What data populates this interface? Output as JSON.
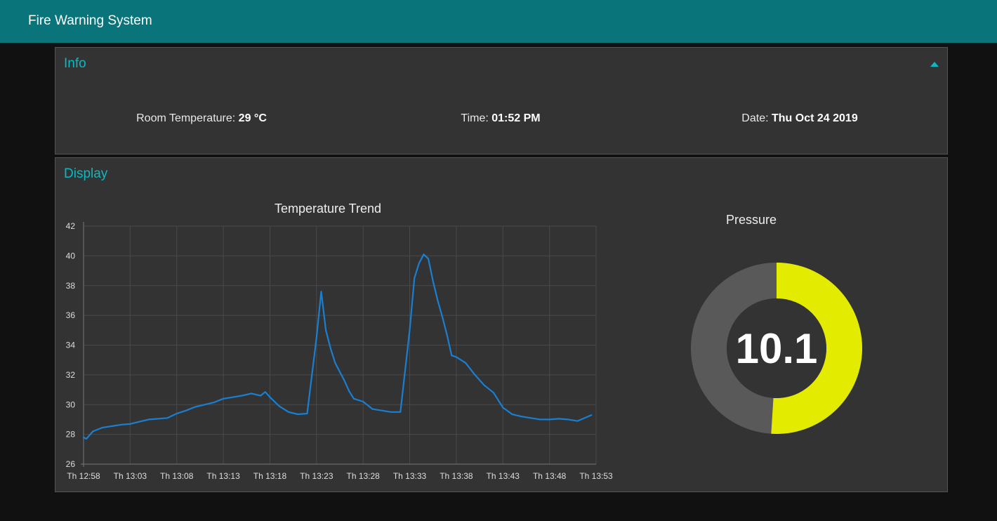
{
  "app": {
    "title": "Fire Warning System"
  },
  "info": {
    "title": "Info",
    "room_temperature": {
      "label": "Room Temperature:",
      "value": "29 °C"
    },
    "time": {
      "label": "Time:",
      "value": "01:52 PM"
    },
    "date": {
      "label": "Date:",
      "value": "Thu Oct 24 2019"
    }
  },
  "display": {
    "title": "Display",
    "gauge": {
      "title": "Pressure",
      "value": 10.1,
      "display": "10.1",
      "fraction": 0.51,
      "color": "#e3ec00",
      "track_color": "#595959"
    }
  },
  "colors": {
    "header": "#097479",
    "accent": "#0eb8c0",
    "line": "#1a7fd0"
  },
  "chart_data": {
    "type": "line",
    "title": "Temperature Trend",
    "xlabel": "",
    "ylabel": "",
    "ylim": [
      26,
      42
    ],
    "yticks": [
      26,
      28,
      30,
      32,
      34,
      36,
      38,
      40,
      42
    ],
    "x_tick_labels": [
      "Th 12:58",
      "Th 13:03",
      "Th 13:08",
      "Th 13:13",
      "Th 13:18",
      "Th 13:23",
      "Th 13:28",
      "Th 13:33",
      "Th 13:38",
      "Th 13:43",
      "Th 13:48",
      "Th 13:53"
    ],
    "x_range_minutes": [
      0,
      55
    ],
    "grid": true,
    "series": [
      {
        "x": [
          0,
          0.3,
          1,
          2,
          3,
          4,
          5,
          6,
          7,
          8,
          9,
          10,
          11,
          12,
          13,
          14,
          15,
          16,
          17,
          18,
          19,
          19.5,
          20,
          21,
          22,
          23,
          24,
          25,
          25.5,
          26,
          26.5,
          27,
          27.5,
          28,
          28.5,
          29,
          30,
          31,
          32,
          33,
          34,
          35,
          35.5,
          36,
          36.5,
          37,
          37.5,
          38,
          38.5,
          39,
          39.5,
          40,
          41,
          42,
          43,
          44,
          45,
          46,
          47,
          48,
          49,
          50,
          51,
          52,
          53,
          54.5
        ],
        "y": [
          27.8,
          27.7,
          28.2,
          28.45,
          28.55,
          28.65,
          28.7,
          28.85,
          29.0,
          29.05,
          29.1,
          29.4,
          29.6,
          29.85,
          30.0,
          30.15,
          30.4,
          30.5,
          30.6,
          30.75,
          30.6,
          30.85,
          30.5,
          29.9,
          29.5,
          29.35,
          29.4,
          34.5,
          37.6,
          35.0,
          33.8,
          32.8,
          32.2,
          31.6,
          30.9,
          30.4,
          30.2,
          29.7,
          29.6,
          29.5,
          29.5,
          35.0,
          38.5,
          39.5,
          40.1,
          39.8,
          38.3,
          37.0,
          35.9,
          34.7,
          33.3,
          33.2,
          32.8,
          32.0,
          31.3,
          30.8,
          29.8,
          29.35,
          29.2,
          29.1,
          29.0,
          29.0,
          29.05,
          29.0,
          28.9,
          29.3
        ]
      }
    ]
  }
}
